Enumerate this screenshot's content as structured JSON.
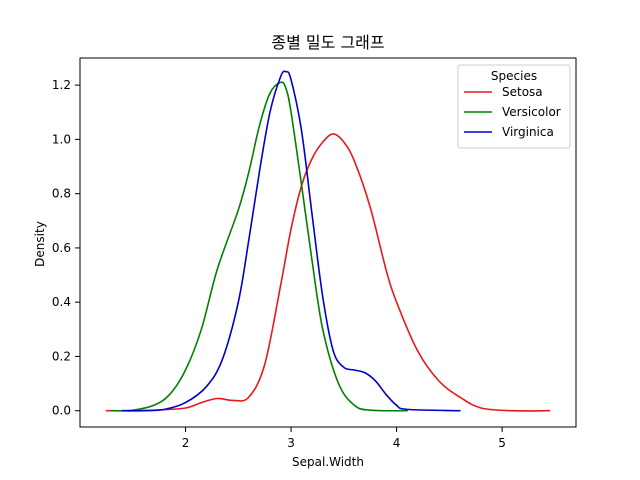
{
  "chart_data": {
    "type": "line",
    "title": "종별 밀도 그래프",
    "xlabel": "Sepal.Width",
    "ylabel": "Density",
    "xlim": [
      1.0,
      5.7
    ],
    "ylim": [
      -0.06,
      1.3
    ],
    "xticks": [
      2,
      3,
      4,
      5
    ],
    "yticks": [
      0.0,
      0.2,
      0.4,
      0.6,
      0.8,
      1.0,
      1.2
    ],
    "xtick_labels": [
      "2",
      "3",
      "4",
      "5"
    ],
    "ytick_labels": [
      "0.0",
      "0.2",
      "0.4",
      "0.6",
      "0.8",
      "1.0",
      "1.2"
    ],
    "legend": {
      "title": "Species",
      "placement": "top-right"
    },
    "series": [
      {
        "name": "Setosa",
        "color": "#e41a1c",
        "x": [
          1.25,
          1.5,
          1.75,
          2.0,
          2.15,
          2.3,
          2.45,
          2.6,
          2.75,
          2.9,
          3.0,
          3.1,
          3.2,
          3.3,
          3.4,
          3.5,
          3.6,
          3.75,
          3.9,
          4.0,
          4.2,
          4.4,
          4.6,
          4.8,
          5.1,
          5.45
        ],
        "values": [
          0.0,
          0.0,
          0.003,
          0.01,
          0.03,
          0.045,
          0.038,
          0.05,
          0.17,
          0.46,
          0.67,
          0.83,
          0.93,
          0.99,
          1.02,
          0.99,
          0.92,
          0.75,
          0.52,
          0.4,
          0.22,
          0.11,
          0.05,
          0.01,
          0.0,
          0.0
        ]
      },
      {
        "name": "Versicolor",
        "color": "#008000",
        "x": [
          1.3,
          1.5,
          1.7,
          1.85,
          2.0,
          2.15,
          2.3,
          2.5,
          2.6,
          2.7,
          2.8,
          2.9,
          2.95,
          3.0,
          3.1,
          3.2,
          3.3,
          3.45,
          3.6,
          3.75,
          4.1
        ],
        "values": [
          0.0,
          0.002,
          0.02,
          0.06,
          0.15,
          0.3,
          0.52,
          0.74,
          0.88,
          1.05,
          1.17,
          1.21,
          1.19,
          1.1,
          0.83,
          0.55,
          0.3,
          0.1,
          0.02,
          0.002,
          0.0
        ]
      },
      {
        "name": "Virginica",
        "color": "#0000cc",
        "x": [
          1.4,
          1.6,
          1.8,
          2.0,
          2.2,
          2.35,
          2.5,
          2.6,
          2.7,
          2.8,
          2.9,
          2.95,
          3.0,
          3.1,
          3.2,
          3.3,
          3.4,
          3.5,
          3.6,
          3.7,
          3.8,
          3.9,
          4.0,
          4.1,
          4.6
        ],
        "values": [
          0.0,
          0.0,
          0.005,
          0.03,
          0.09,
          0.19,
          0.4,
          0.63,
          0.88,
          1.1,
          1.23,
          1.25,
          1.22,
          1.03,
          0.72,
          0.42,
          0.22,
          0.16,
          0.15,
          0.14,
          0.11,
          0.06,
          0.02,
          0.005,
          0.0
        ]
      }
    ]
  }
}
